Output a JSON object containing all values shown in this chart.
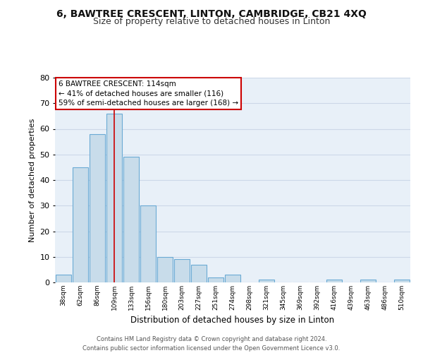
{
  "title": "6, BAWTREE CRESCENT, LINTON, CAMBRIDGE, CB21 4XQ",
  "subtitle": "Size of property relative to detached houses in Linton",
  "xlabel": "Distribution of detached houses by size in Linton",
  "ylabel": "Number of detached properties",
  "bar_labels": [
    "38sqm",
    "62sqm",
    "86sqm",
    "109sqm",
    "133sqm",
    "156sqm",
    "180sqm",
    "203sqm",
    "227sqm",
    "251sqm",
    "274sqm",
    "298sqm",
    "321sqm",
    "345sqm",
    "369sqm",
    "392sqm",
    "416sqm",
    "439sqm",
    "463sqm",
    "486sqm",
    "510sqm"
  ],
  "bar_values": [
    3,
    45,
    58,
    66,
    49,
    30,
    10,
    9,
    7,
    2,
    3,
    0,
    1,
    0,
    0,
    0,
    1,
    0,
    1,
    0,
    1
  ],
  "bar_color": "#c8dcea",
  "bar_edge_color": "#6aaad4",
  "vline_index": 3,
  "vline_color": "#cc0000",
  "annotation_text": "6 BAWTREE CRESCENT: 114sqm\n← 41% of detached houses are smaller (116)\n59% of semi-detached houses are larger (168) →",
  "annotation_box_color": "#ffffff",
  "annotation_box_edge": "#cc0000",
  "ylim": [
    0,
    80
  ],
  "yticks": [
    0,
    10,
    20,
    30,
    40,
    50,
    60,
    70,
    80
  ],
  "grid_color": "#ccd8e8",
  "background_color": "#e8f0f8",
  "title_fontsize": 10,
  "subtitle_fontsize": 9,
  "footer_line1": "Contains HM Land Registry data © Crown copyright and database right 2024.",
  "footer_line2": "Contains public sector information licensed under the Open Government Licence v3.0."
}
